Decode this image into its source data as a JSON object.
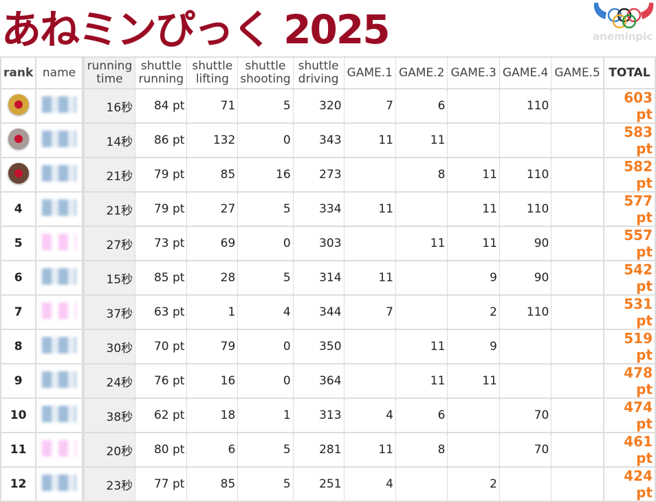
{
  "header": {
    "title": "あねミンぴっく 2025",
    "logo_text": "aneminpic"
  },
  "colors": {
    "title": "#9a0c24",
    "total": "#f57c20",
    "gold": "#d4a63a",
    "silver": "#a89a96",
    "bronze": "#6b4535"
  },
  "columns": [
    "rank",
    "name",
    "running time",
    "shuttle running",
    "shuttle lifting",
    "shuttle shooting",
    "shuttle driving",
    "GAME.1",
    "GAME.2",
    "GAME.3",
    "GAME.4",
    "GAME.5",
    "TOTAL"
  ],
  "rows": [
    {
      "rank": "",
      "medal": "gold",
      "name_color": "blue",
      "cells": [
        "16秒",
        "84 pt",
        "71",
        "5",
        "320",
        "7",
        "6",
        "",
        "110",
        "",
        "603 pt"
      ]
    },
    {
      "rank": "",
      "medal": "silver",
      "name_color": "blue",
      "cells": [
        "14秒",
        "86 pt",
        "132",
        "0",
        "343",
        "11",
        "11",
        "",
        "",
        "",
        "583 pt"
      ]
    },
    {
      "rank": "",
      "medal": "bronze",
      "name_color": "blue",
      "cells": [
        "21秒",
        "79 pt",
        "85",
        "16",
        "273",
        "",
        "8",
        "11",
        "110",
        "",
        "582 pt"
      ]
    },
    {
      "rank": "4",
      "name_color": "blue",
      "cells": [
        "21秒",
        "79 pt",
        "27",
        "5",
        "334",
        "11",
        "",
        "11",
        "110",
        "",
        "577 pt"
      ]
    },
    {
      "rank": "5",
      "name_color": "pink",
      "cells": [
        "27秒",
        "73 pt",
        "69",
        "0",
        "303",
        "",
        "11",
        "11",
        "90",
        "",
        "557 pt"
      ]
    },
    {
      "rank": "6",
      "name_color": "blue",
      "cells": [
        "15秒",
        "85 pt",
        "28",
        "5",
        "314",
        "11",
        "",
        "9",
        "90",
        "",
        "542 pt"
      ]
    },
    {
      "rank": "7",
      "name_color": "pink",
      "cells": [
        "37秒",
        "63 pt",
        "1",
        "4",
        "344",
        "7",
        "",
        "2",
        "110",
        "",
        "531 pt"
      ]
    },
    {
      "rank": "8",
      "name_color": "blue",
      "cells": [
        "30秒",
        "70 pt",
        "79",
        "0",
        "350",
        "",
        "11",
        "9",
        "",
        "",
        "519 pt"
      ]
    },
    {
      "rank": "9",
      "name_color": "blue",
      "cells": [
        "24秒",
        "76 pt",
        "16",
        "0",
        "364",
        "",
        "11",
        "11",
        "",
        "",
        "478 pt"
      ]
    },
    {
      "rank": "10",
      "name_color": "blue",
      "cells": [
        "38秒",
        "62 pt",
        "18",
        "1",
        "313",
        "4",
        "6",
        "",
        "70",
        "",
        "474 pt"
      ]
    },
    {
      "rank": "11",
      "name_color": "pink",
      "cells": [
        "20秒",
        "80 pt",
        "6",
        "5",
        "281",
        "11",
        "8",
        "",
        "70",
        "",
        "461 pt"
      ]
    },
    {
      "rank": "12",
      "name_color": "blue",
      "cells": [
        "23秒",
        "77 pt",
        "85",
        "5",
        "251",
        "4",
        "",
        "2",
        "",
        "",
        "424 pt"
      ]
    }
  ]
}
